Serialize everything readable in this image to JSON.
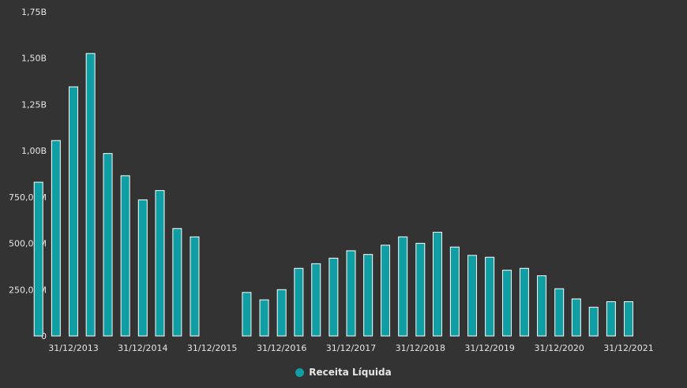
{
  "colors": {
    "background": "#333333",
    "bar_fill": "#0f9ea3",
    "bar_stroke": "#ffffff",
    "text": "#e6e6e6"
  },
  "chart_data": {
    "type": "bar",
    "title": "",
    "xlabel": "",
    "ylabel": "",
    "ylim": [
      0,
      1750000000
    ],
    "y_ticks": [
      {
        "value": 0,
        "label": "0"
      },
      {
        "value": 250000000,
        "label": "250,00M"
      },
      {
        "value": 500000000,
        "label": "500,00M"
      },
      {
        "value": 750000000,
        "label": "750,00M"
      },
      {
        "value": 1000000000,
        "label": "1,00B"
      },
      {
        "value": 1250000000,
        "label": "1,25B"
      },
      {
        "value": 1500000000,
        "label": "1,50B"
      },
      {
        "value": 1750000000,
        "label": "1,75B"
      }
    ],
    "grid": false,
    "legend_position": "bottom-center",
    "x_ticks": [
      {
        "date": "2013-12-31",
        "label": "31/12/2013"
      },
      {
        "date": "2014-12-31",
        "label": "31/12/2014"
      },
      {
        "date": "2015-12-31",
        "label": "31/12/2015"
      },
      {
        "date": "2016-12-31",
        "label": "31/12/2016"
      },
      {
        "date": "2017-12-31",
        "label": "31/12/2017"
      },
      {
        "date": "2018-12-31",
        "label": "31/12/2018"
      },
      {
        "date": "2019-12-31",
        "label": "31/12/2019"
      },
      {
        "date": "2020-12-31",
        "label": "31/12/2020"
      },
      {
        "date": "2021-12-31",
        "label": "31/12/2021"
      }
    ],
    "series": [
      {
        "name": "Receita Líquida",
        "points": [
          {
            "date": "2013-06-30",
            "value": 830000000
          },
          {
            "date": "2013-09-30",
            "value": 1055000000
          },
          {
            "date": "2013-12-31",
            "value": 1345000000
          },
          {
            "date": "2014-03-31",
            "value": 1525000000
          },
          {
            "date": "2014-06-30",
            "value": 985000000
          },
          {
            "date": "2014-09-30",
            "value": 865000000
          },
          {
            "date": "2014-12-31",
            "value": 735000000
          },
          {
            "date": "2015-03-31",
            "value": 785000000
          },
          {
            "date": "2015-06-30",
            "value": 580000000
          },
          {
            "date": "2015-09-30",
            "value": 535000000
          },
          {
            "date": "2016-06-30",
            "value": 235000000
          },
          {
            "date": "2016-09-30",
            "value": 195000000
          },
          {
            "date": "2016-12-31",
            "value": 250000000
          },
          {
            "date": "2017-03-31",
            "value": 365000000
          },
          {
            "date": "2017-06-30",
            "value": 390000000
          },
          {
            "date": "2017-09-30",
            "value": 420000000
          },
          {
            "date": "2017-12-31",
            "value": 460000000
          },
          {
            "date": "2018-03-31",
            "value": 440000000
          },
          {
            "date": "2018-06-30",
            "value": 490000000
          },
          {
            "date": "2018-09-30",
            "value": 535000000
          },
          {
            "date": "2018-12-31",
            "value": 500000000
          },
          {
            "date": "2019-03-31",
            "value": 560000000
          },
          {
            "date": "2019-06-30",
            "value": 480000000
          },
          {
            "date": "2019-09-30",
            "value": 435000000
          },
          {
            "date": "2019-12-31",
            "value": 425000000
          },
          {
            "date": "2020-03-31",
            "value": 355000000
          },
          {
            "date": "2020-06-30",
            "value": 365000000
          },
          {
            "date": "2020-09-30",
            "value": 325000000
          },
          {
            "date": "2020-12-31",
            "value": 255000000
          },
          {
            "date": "2021-03-31",
            "value": 200000000
          },
          {
            "date": "2021-06-30",
            "value": 155000000
          },
          {
            "date": "2021-09-30",
            "value": 185000000
          },
          {
            "date": "2021-12-31",
            "value": 185000000
          }
        ]
      }
    ]
  }
}
